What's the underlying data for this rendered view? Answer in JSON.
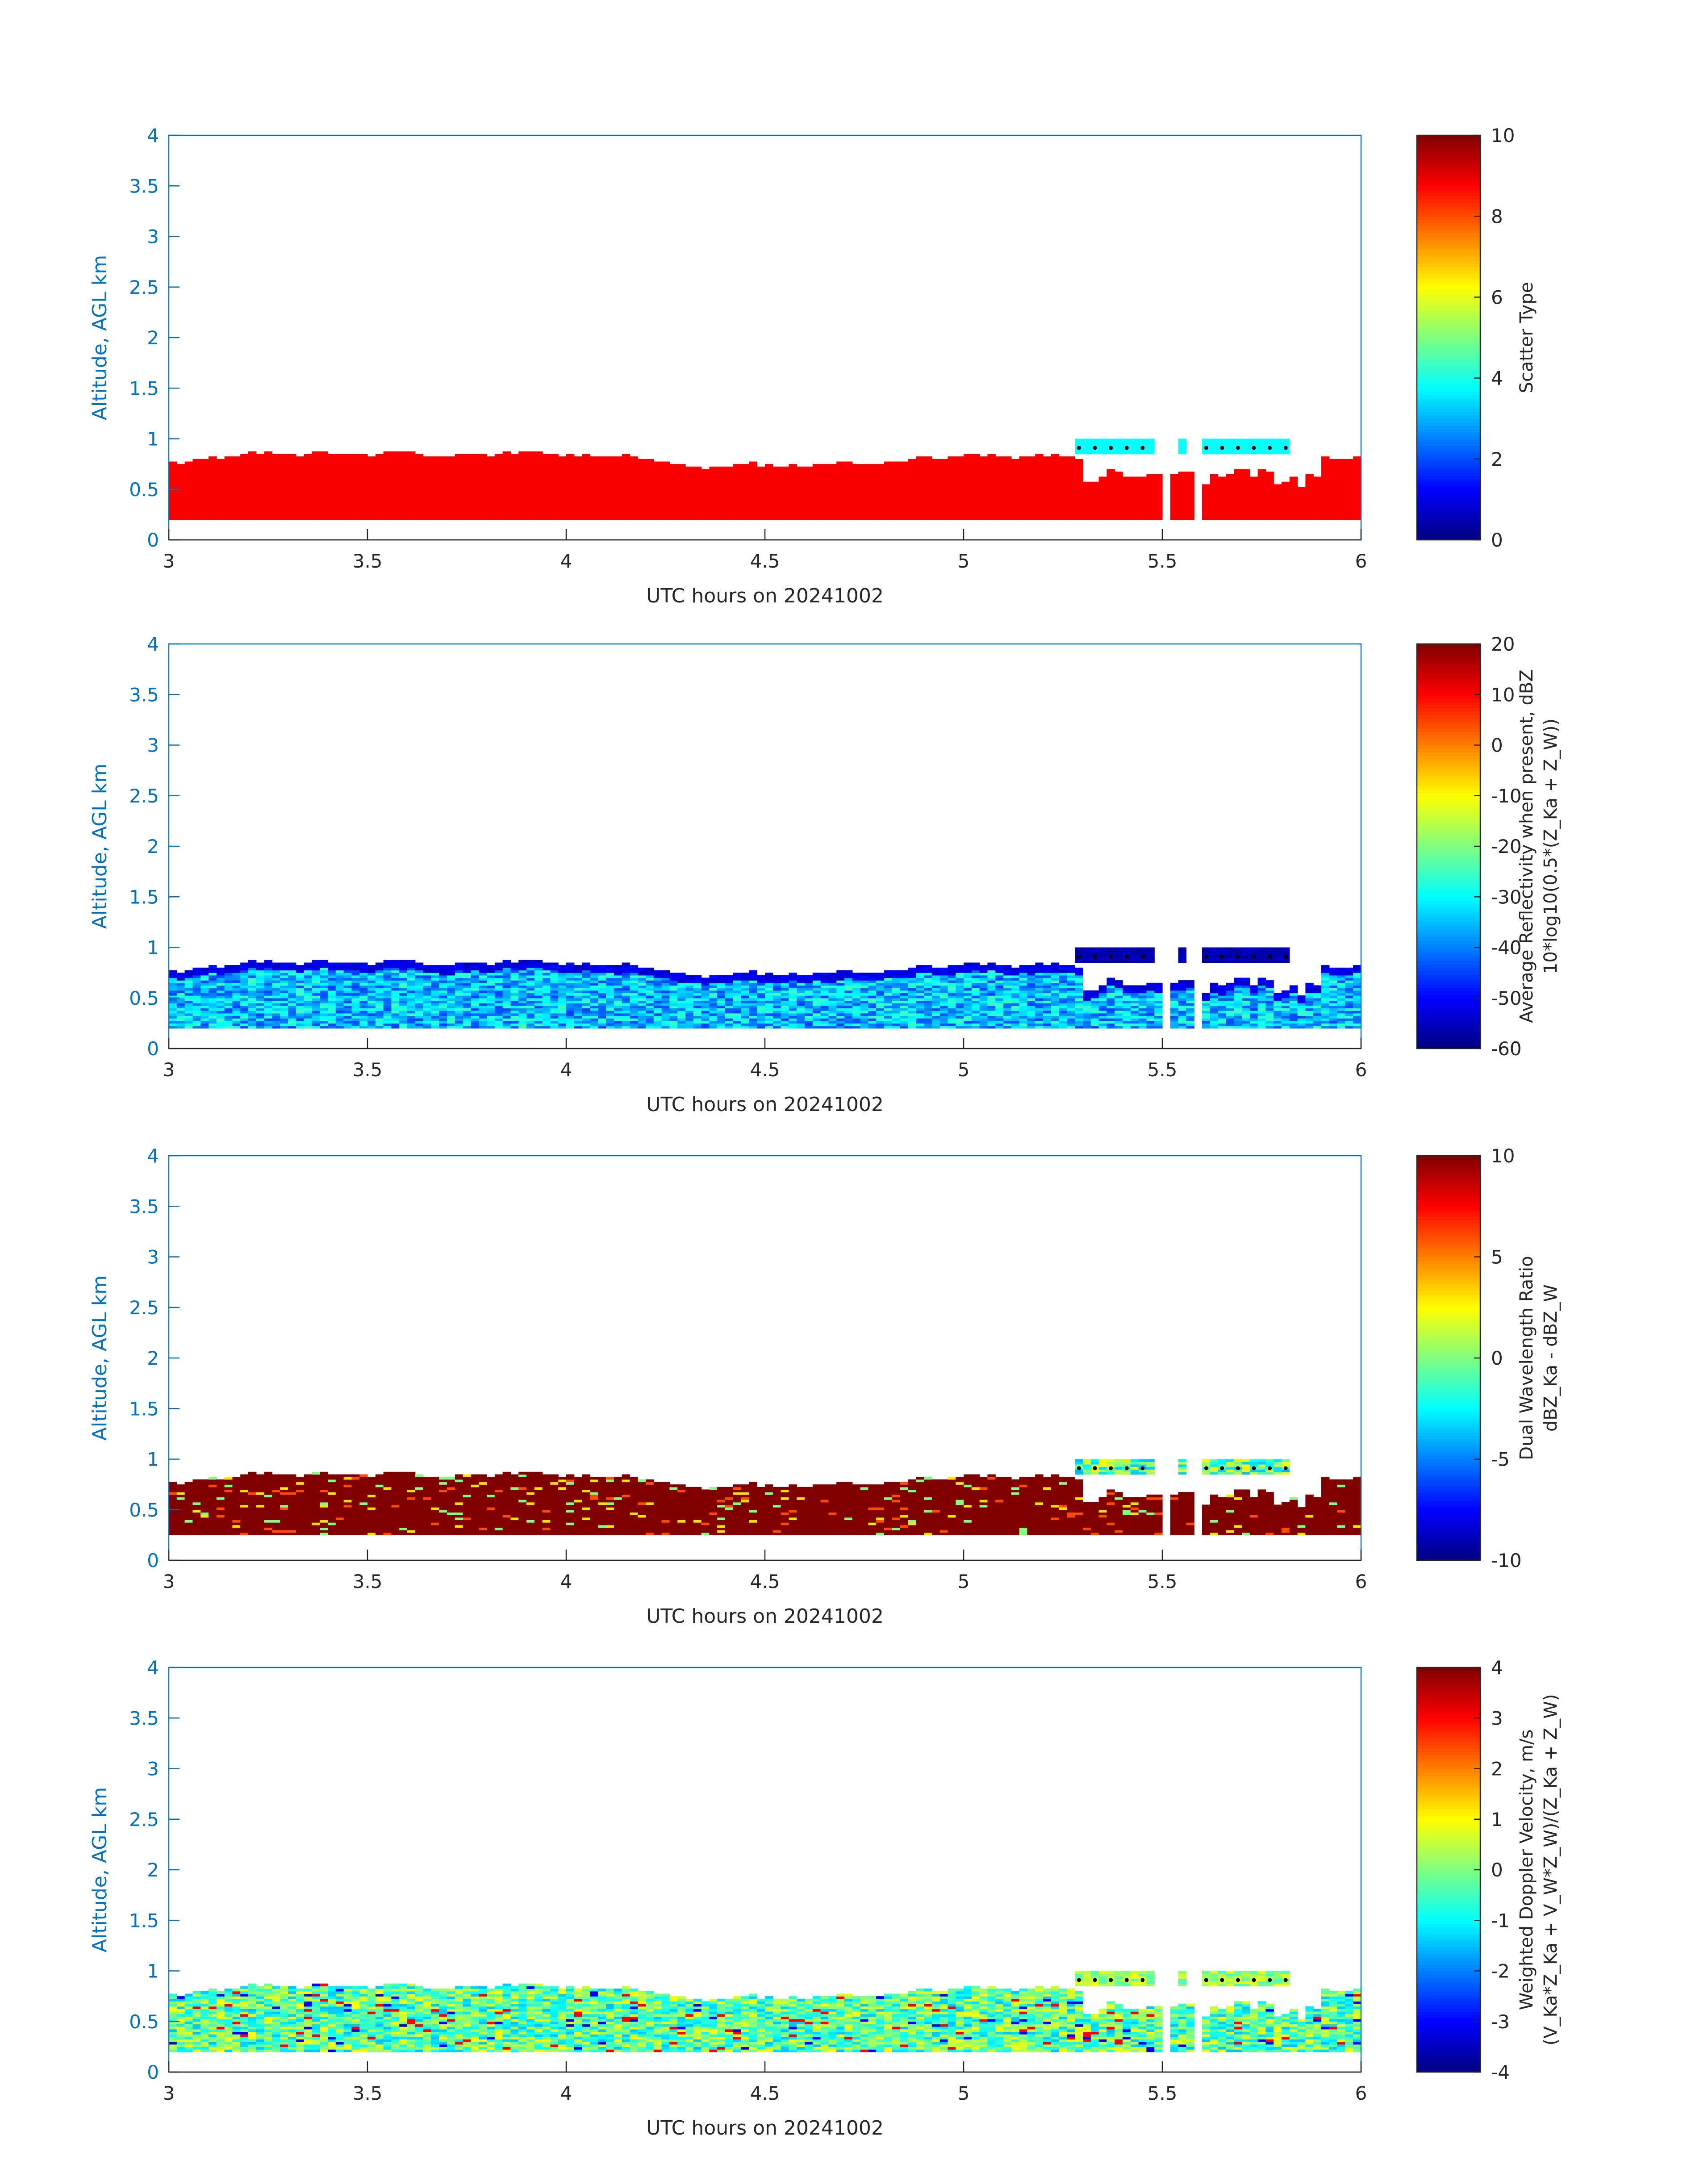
{
  "figure": {
    "ylabel": "Altitude, AGL km",
    "xlabel": "UTC hours on 20241002"
  },
  "chart_data": [
    {
      "type": "heatmap",
      "title": "",
      "xlabel": "UTC hours on 20241002",
      "ylabel": "Altitude, AGL km",
      "xlim": [
        3,
        6
      ],
      "ylim": [
        0,
        4
      ],
      "xticks": [
        "3",
        "3.5",
        "4",
        "4.5",
        "5",
        "5.5",
        "6"
      ],
      "yticks": [
        "0",
        "0.5",
        "1",
        "1.5",
        "2",
        "2.5",
        "3",
        "3.5",
        "4"
      ],
      "colorbar": {
        "label_lines": [
          "Scatter Type"
        ],
        "clim": [
          0,
          10
        ],
        "ticks": [
          "0",
          "2",
          "4",
          "6",
          "8",
          "10"
        ],
        "colormap": "jet"
      },
      "field": "scatter_type",
      "dominant_value": 8.8,
      "cloud_value": 3.8,
      "echo_base_km": 0.2,
      "echo_top_km_approx": 0.75,
      "cloud_layer_km": [
        0.85,
        1.0
      ],
      "cloud_times_h": [
        [
          5.27,
          5.48
        ],
        [
          5.53,
          5.55
        ],
        [
          5.6,
          5.82
        ]
      ],
      "gaps_h": [
        [
          5.5,
          5.52
        ],
        [
          5.57,
          5.6
        ]
      ]
    },
    {
      "type": "heatmap",
      "title": "",
      "xlabel": "UTC hours on 20241002",
      "ylabel": "Altitude, AGL km",
      "xlim": [
        3,
        6
      ],
      "ylim": [
        0,
        4
      ],
      "xticks": [
        "3",
        "3.5",
        "4",
        "4.5",
        "5",
        "5.5",
        "6"
      ],
      "yticks": [
        "0",
        "0.5",
        "1",
        "1.5",
        "2",
        "2.5",
        "3",
        "3.5",
        "4"
      ],
      "colorbar": {
        "label_lines": [
          "Average Reflectivity when present, dBZ",
          "10*log10(0.5*(Z_Ka + Z_W))"
        ],
        "clim": [
          -60,
          20
        ],
        "ticks": [
          "-60",
          "-50",
          "-40",
          "-30",
          "-20",
          "-10",
          "0",
          "10",
          "20"
        ],
        "colormap": "jet"
      },
      "field": "reflectivity_dbz",
      "typical_range_dbz": [
        -45,
        -25
      ],
      "top_edge_dbz": -52,
      "cloud_dbz": -56,
      "echo_base_km": 0.2,
      "echo_top_km_approx": 0.75,
      "cloud_layer_km": [
        0.85,
        1.0
      ]
    },
    {
      "type": "heatmap",
      "title": "",
      "xlabel": "UTC hours on 20241002",
      "ylabel": "Altitude, AGL km",
      "xlim": [
        3,
        6
      ],
      "ylim": [
        0,
        4
      ],
      "xticks": [
        "3",
        "3.5",
        "4",
        "4.5",
        "5",
        "5.5",
        "6"
      ],
      "yticks": [
        "0",
        "0.5",
        "1",
        "1.5",
        "2",
        "2.5",
        "3",
        "3.5",
        "4"
      ],
      "colorbar": {
        "label_lines": [
          "Dual Wavelength Ratio",
          "dBZ_Ka - dBZ_W"
        ],
        "clim": [
          -10,
          10
        ],
        "ticks": [
          "-10",
          "-5",
          "0",
          "5",
          "10"
        ],
        "colormap": "jet"
      },
      "field": "dual_wavelength_ratio_db",
      "dominant_value": 10,
      "occasional_values": [
        6,
        3,
        0
      ],
      "cloud_values": [
        -3,
        0,
        2
      ],
      "echo_base_km": 0.25,
      "echo_top_km_approx": 0.7,
      "cloud_layer_km": [
        0.85,
        1.0
      ]
    },
    {
      "type": "heatmap",
      "title": "",
      "xlabel": "UTC hours on 20241002",
      "ylabel": "Altitude, AGL km",
      "xlim": [
        3,
        6
      ],
      "ylim": [
        0,
        4
      ],
      "xticks": [
        "3",
        "3.5",
        "4",
        "4.5",
        "5",
        "5.5",
        "6"
      ],
      "yticks": [
        "0",
        "0.5",
        "1",
        "1.5",
        "2",
        "2.5",
        "3",
        "3.5",
        "4"
      ],
      "colorbar": {
        "label_lines": [
          "Weighted Doppler Velocity, m/s",
          "(V_Ka*Z_Ka + V_W*Z_W)/(Z_Ka + Z_W)"
        ],
        "clim": [
          -4,
          4
        ],
        "ticks": [
          "-4",
          "-3",
          "-2",
          "-1",
          "0",
          "1",
          "2",
          "3",
          "4"
        ],
        "colormap": "jet"
      },
      "field": "doppler_velocity_ms",
      "typical_range_ms": [
        -1.5,
        1
      ],
      "occasional_values": [
        -3,
        3
      ],
      "cloud_values": [
        -0.5,
        1
      ],
      "echo_base_km": 0.2,
      "echo_top_km_approx": 0.75,
      "cloud_layer_km": [
        0.85,
        1.0
      ]
    }
  ]
}
